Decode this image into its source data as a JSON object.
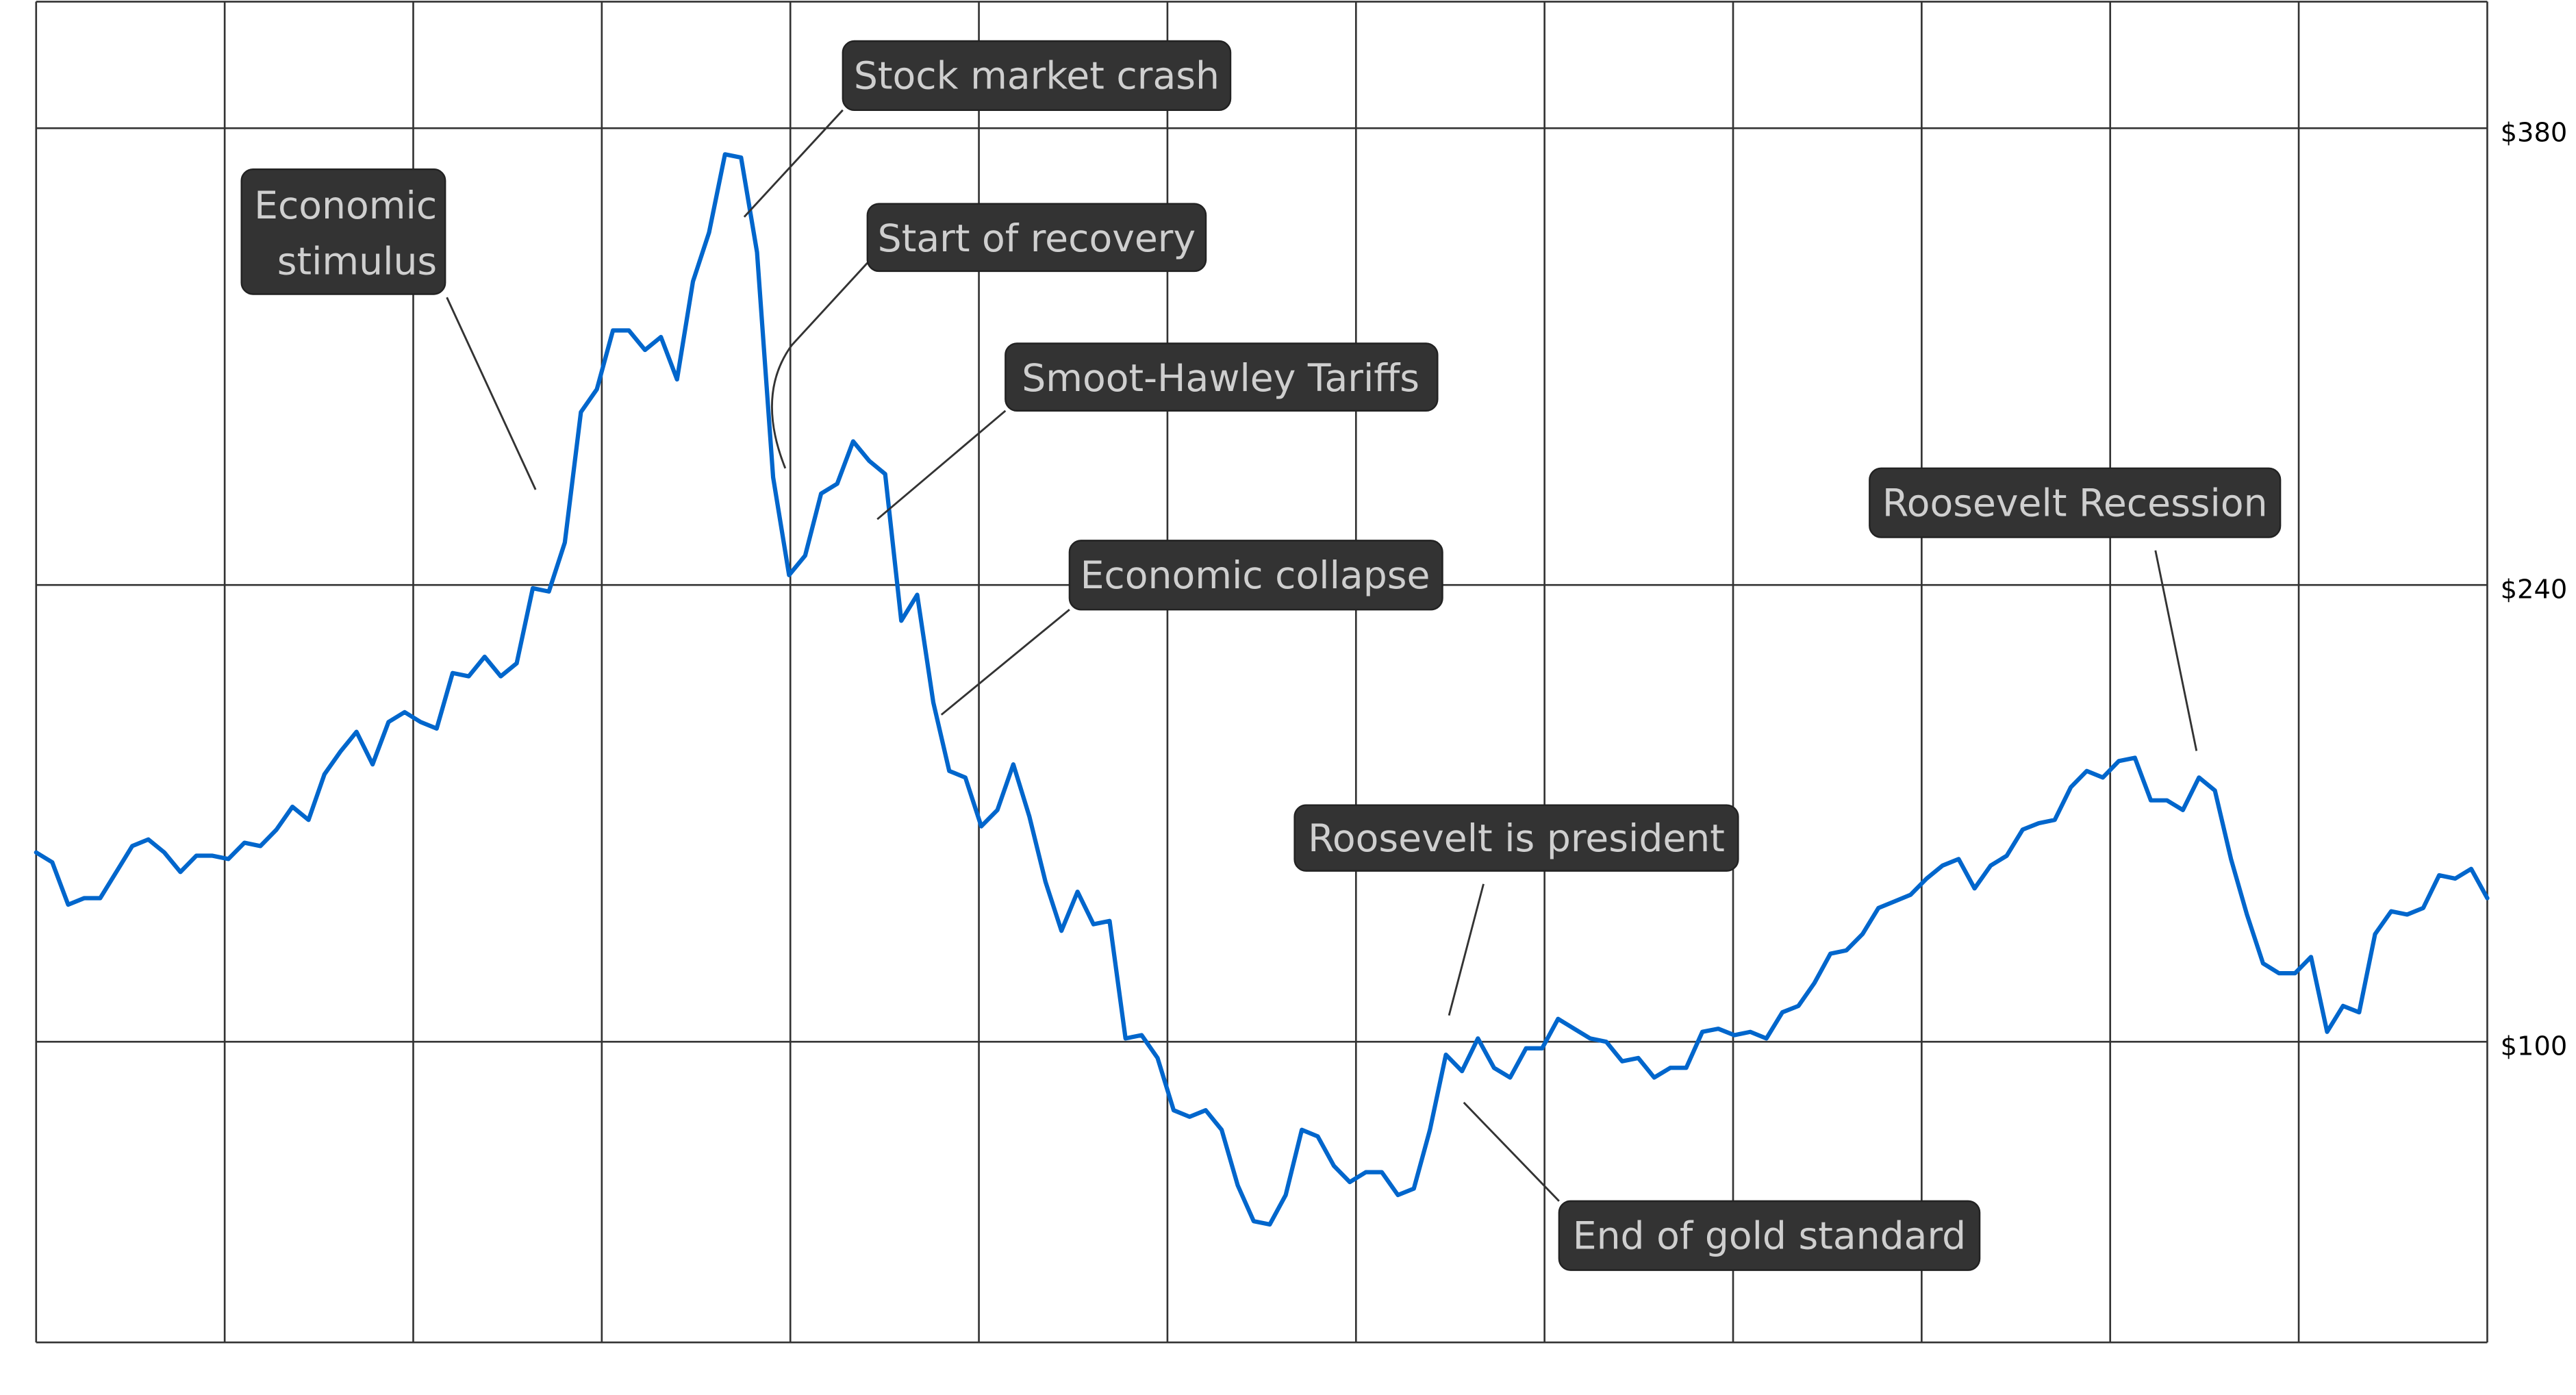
{
  "chart_data": {
    "type": "line",
    "title": "",
    "xlabel": "",
    "ylabel": "",
    "ylim": [
      8,
      420
    ],
    "yticks": [
      100,
      240,
      380
    ],
    "ytick_labels": [
      "$100",
      "$240",
      "$380"
    ],
    "y_axis_position": "right",
    "grid": true,
    "vertical_gridlines": 14,
    "line_color": "#0066cc",
    "values": [
      158,
      155,
      142,
      144,
      144,
      152,
      160,
      162,
      158,
      152,
      157,
      157,
      156,
      161,
      160,
      165,
      172,
      168,
      182,
      189,
      195,
      185,
      198,
      201,
      198,
      196,
      213,
      212,
      218,
      212,
      216,
      239,
      238,
      253,
      293,
      300,
      318,
      318,
      312,
      316,
      303,
      333,
      348,
      372,
      371,
      342,
      273,
      243,
      249,
      268,
      271,
      284,
      278,
      274,
      229,
      237,
      204,
      183,
      181,
      166,
      171,
      185,
      169,
      149,
      134,
      146,
      136,
      137,
      101,
      102,
      95,
      79,
      77,
      79,
      73,
      56,
      45,
      44,
      53,
      73,
      71,
      62,
      57,
      60,
      60,
      53,
      55,
      73,
      96,
      91,
      101,
      92,
      89,
      98,
      98,
      107,
      104,
      101,
      100,
      94,
      95,
      89,
      92,
      92,
      103,
      104,
      102,
      103,
      101,
      109,
      111,
      118,
      127,
      128,
      133,
      141,
      143,
      145,
      150,
      154,
      156,
      147,
      154,
      157,
      165,
      167,
      168,
      178,
      183,
      181,
      186,
      187,
      174,
      174,
      171,
      181,
      177,
      156,
      139,
      124,
      121,
      121,
      126,
      103,
      111,
      109,
      133,
      140,
      139,
      141,
      151,
      150,
      153,
      144
    ],
    "annotations": [
      {
        "label": "Stock market crash"
      },
      {
        "label_line1": "Economic",
        "label_line2": "stimulus"
      },
      {
        "label": "Start of recovery"
      },
      {
        "label": "Smoot-Hawley Tariffs"
      },
      {
        "label": "Economic collapse"
      },
      {
        "label": "Roosevelt is president"
      },
      {
        "label": "End of gold standard"
      },
      {
        "label": "Roosevelt Recession"
      }
    ]
  }
}
